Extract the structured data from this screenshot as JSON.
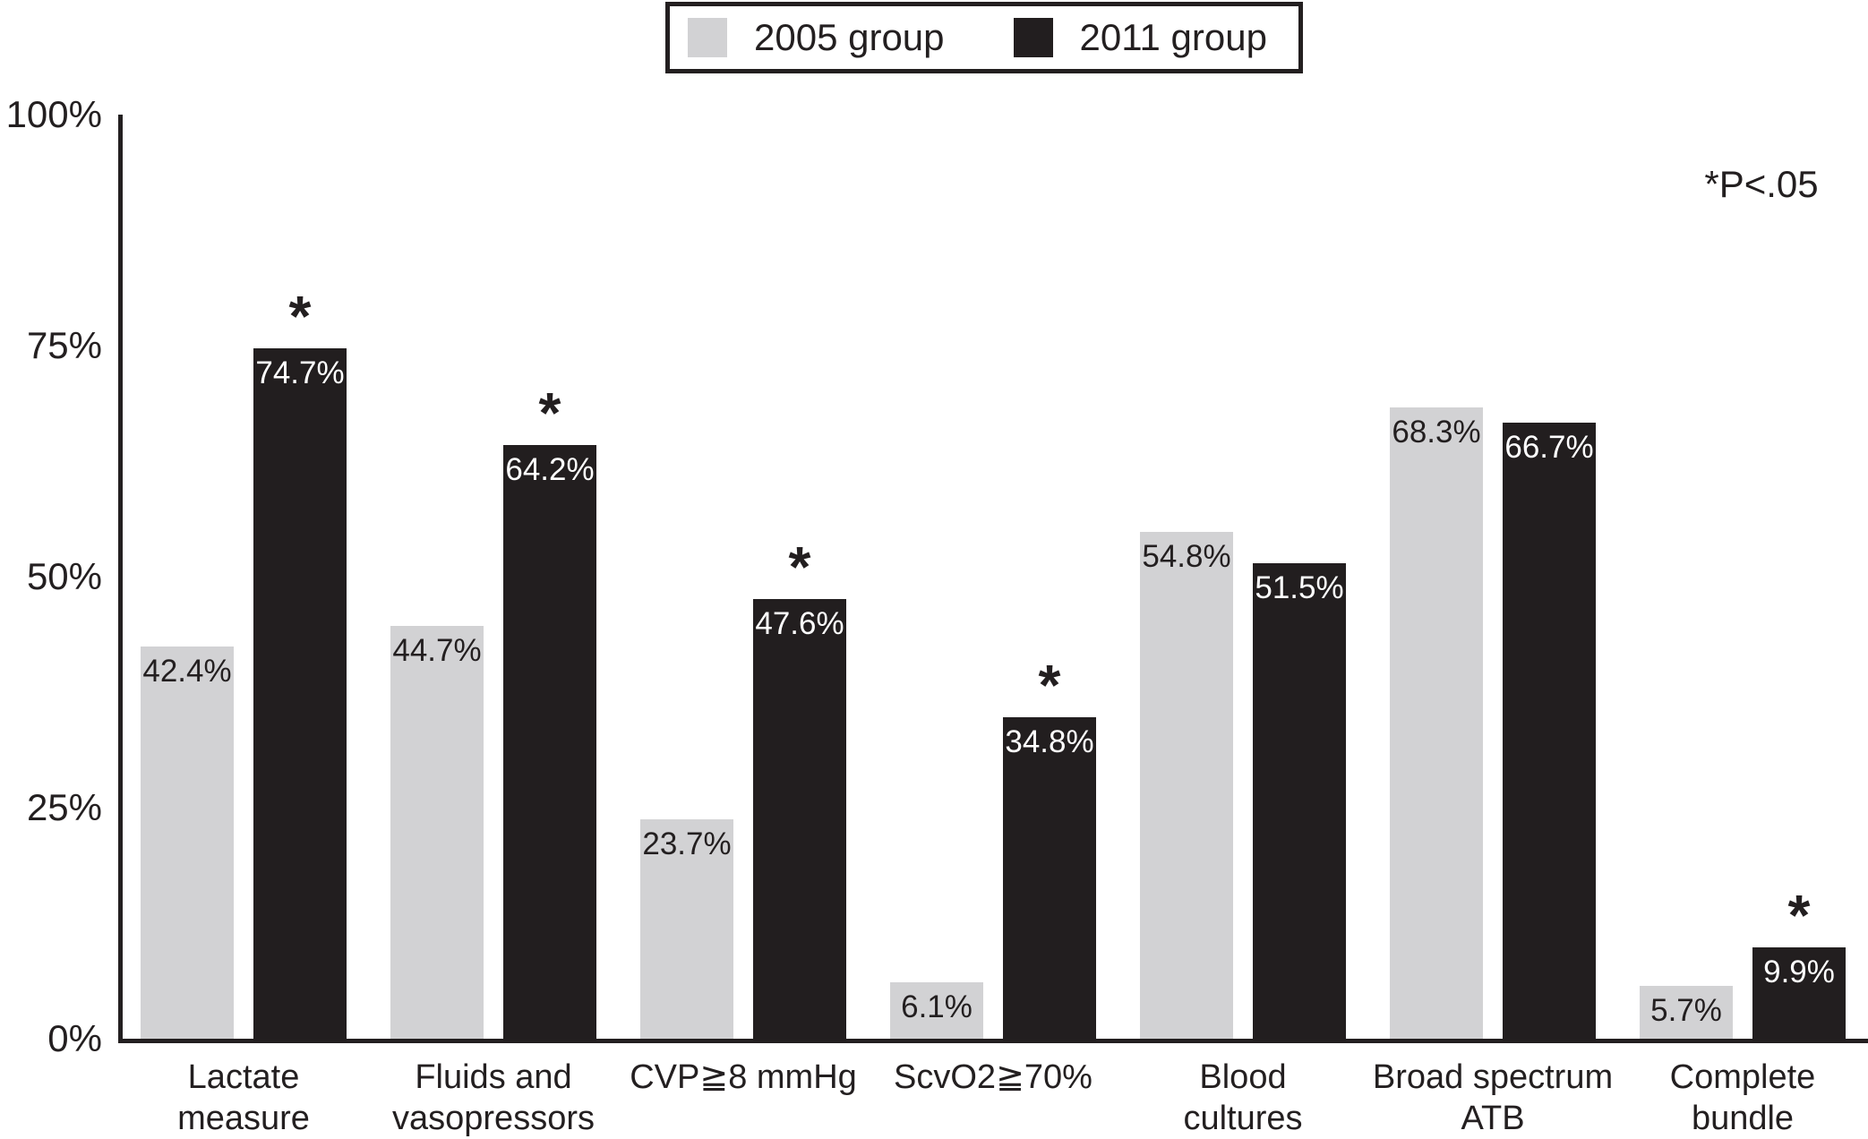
{
  "figure": {
    "annotation": "*P<.05",
    "significance_marker": "*"
  },
  "legend": {
    "items": [
      {
        "label": "2005 group",
        "color": "#d2d2d4"
      },
      {
        "label": "2011 group",
        "color": "#221e1f"
      }
    ]
  },
  "chart_data": {
    "type": "bar",
    "title": "",
    "xlabel": "",
    "ylabel": "",
    "ylim": [
      0,
      100
    ],
    "grid": false,
    "legend_position": "top-center",
    "annotation": "*P<.05",
    "significance_note": "asterisk above a 2011 bar means P<.05",
    "y_ticks": [
      "0%",
      "25%",
      "50%",
      "75%",
      "100%"
    ],
    "y_tick_values": [
      0,
      25,
      50,
      75,
      100
    ],
    "categories": [
      "Lactate\nmeasure",
      "Fluids and\nvasopressors",
      "CVP≧8 mmHg",
      "ScvO2≧70%",
      "Blood\ncultures",
      "Broad spectrum\nATB",
      "Complete\nbundle"
    ],
    "series": [
      {
        "name": "2005 group",
        "color": "#d2d2d4",
        "label_color": "#231f20",
        "values": [
          42.4,
          44.7,
          23.7,
          6.1,
          54.8,
          68.3,
          5.7
        ],
        "labels": [
          "42.4%",
          "44.7%",
          "23.7%",
          "6.1%",
          "54.8%",
          "68.3%",
          "5.7%"
        ],
        "significant": [
          false,
          false,
          false,
          false,
          false,
          false,
          false
        ]
      },
      {
        "name": "2011 group",
        "color": "#221e1f",
        "label_color": "#ffffff",
        "values": [
          74.7,
          64.2,
          47.6,
          34.8,
          51.5,
          66.7,
          9.9
        ],
        "labels": [
          "74.7%",
          "64.2%",
          "47.6%",
          "34.8%",
          "51.5%",
          "66.7%",
          "9.9%"
        ],
        "significant": [
          true,
          true,
          true,
          true,
          false,
          false,
          true
        ]
      }
    ]
  }
}
